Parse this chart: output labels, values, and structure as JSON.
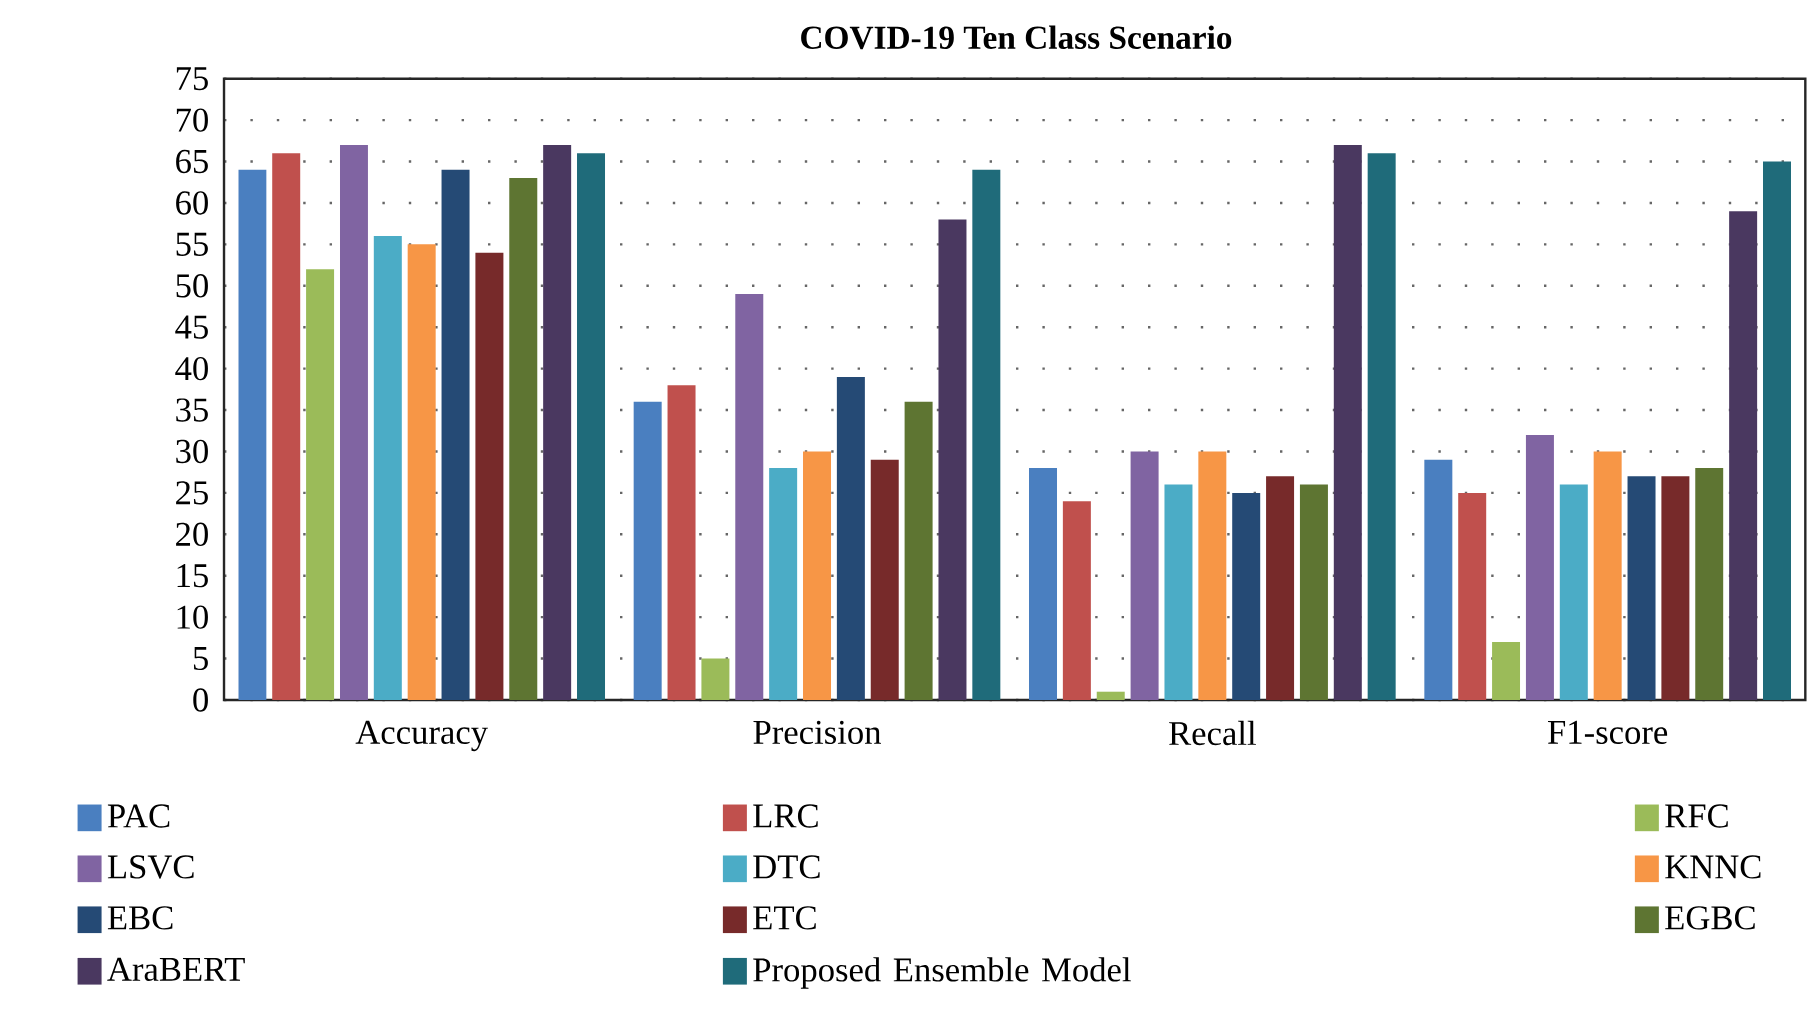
{
  "chart_data": {
    "type": "bar",
    "title": "COVID-19 Ten Class Scenario",
    "categories": [
      "Accuracy",
      "Precision",
      "Recall",
      "F1-score"
    ],
    "series": [
      {
        "name": "PAC",
        "color": "#4a7fc0",
        "values": [
          64,
          36,
          28,
          29
        ]
      },
      {
        "name": "LRC",
        "color": "#c0504d",
        "values": [
          66,
          38,
          24,
          25
        ]
      },
      {
        "name": "RFC",
        "color": "#9bbb59",
        "values": [
          52,
          5,
          1,
          7
        ]
      },
      {
        "name": "LSVC",
        "color": "#8064a2",
        "values": [
          67,
          49,
          30,
          32
        ]
      },
      {
        "name": "DTC",
        "color": "#4bacc6",
        "values": [
          56,
          28,
          26,
          26
        ]
      },
      {
        "name": "KNNC",
        "color": "#f79646",
        "values": [
          55,
          30,
          30,
          30
        ]
      },
      {
        "name": "EBC",
        "color": "#254a75",
        "values": [
          64,
          39,
          25,
          27
        ]
      },
      {
        "name": "ETC",
        "color": "#772a2a",
        "values": [
          54,
          29,
          27,
          27
        ]
      },
      {
        "name": "EGBC",
        "color": "#5e7532",
        "values": [
          63,
          36,
          26,
          28
        ]
      },
      {
        "name": "AraBERT",
        "color": "#4a3860",
        "values": [
          67,
          58,
          67,
          59
        ]
      },
      {
        "name": "Proposed Ensemble Model",
        "color": "#1f6b7a",
        "values": [
          66,
          64,
          66,
          65
        ]
      }
    ],
    "ylim": [
      0,
      75
    ],
    "yticks": [
      0,
      5,
      10,
      15,
      20,
      25,
      30,
      35,
      40,
      45,
      50,
      55,
      60,
      65,
      70,
      75
    ],
    "grid": "y",
    "legend": "bottom"
  }
}
